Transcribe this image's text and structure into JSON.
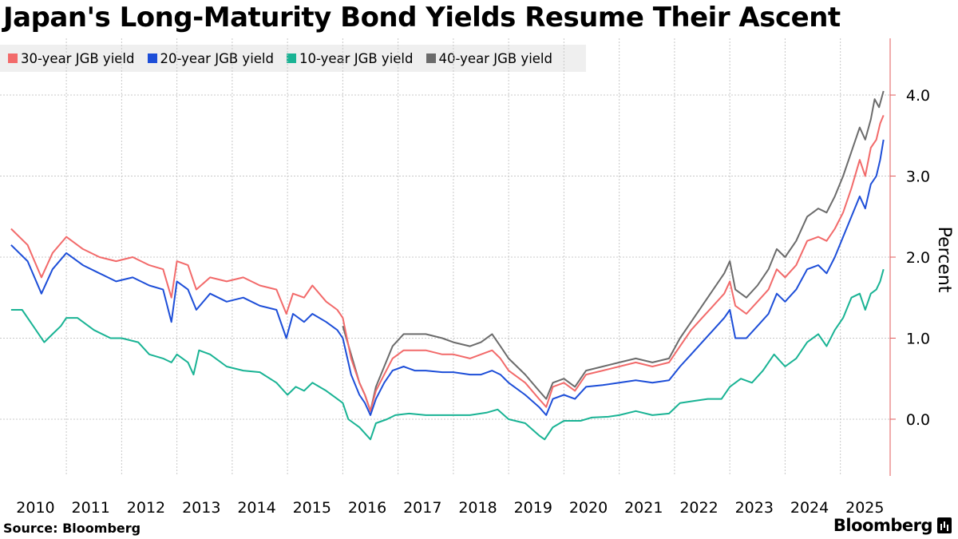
{
  "title": "Japan's Long-Maturity Bond Yields Resume Their Ascent",
  "source": "Source: Bloomberg",
  "brand": "Bloomberg",
  "brand_icon": "terminal-icon",
  "chart_data": {
    "type": "line",
    "ylabel": "Percent",
    "ylim": [
      -0.7,
      4.7
    ],
    "yticks": [
      0.0,
      1.0,
      2.0,
      3.0,
      4.0
    ],
    "ytick_labels": [
      "0.0",
      "1.0",
      "2.0",
      "3.0",
      "4.0"
    ],
    "xlim": [
      2010.0,
      2025.75
    ],
    "xticks": [
      2010,
      2011,
      2012,
      2013,
      2014,
      2015,
      2016,
      2017,
      2018,
      2019,
      2020,
      2021,
      2022,
      2023,
      2024,
      2025
    ],
    "xtick_labels": [
      "2010",
      "2011",
      "2012",
      "2013",
      "2014",
      "2015",
      "2016",
      "2017",
      "2018",
      "2019",
      "2020",
      "2021",
      "2022",
      "2023",
      "2024",
      "2025"
    ],
    "grid": true,
    "legend_position": "top-left",
    "series": [
      {
        "name": "30-year JGB yield",
        "color": "#f26a6a",
        "points": [
          [
            2010.0,
            2.35
          ],
          [
            2010.3,
            2.15
          ],
          [
            2010.55,
            1.75
          ],
          [
            2010.75,
            2.05
          ],
          [
            2011.0,
            2.25
          ],
          [
            2011.3,
            2.1
          ],
          [
            2011.6,
            2.0
          ],
          [
            2011.9,
            1.95
          ],
          [
            2012.2,
            2.0
          ],
          [
            2012.5,
            1.9
          ],
          [
            2012.75,
            1.85
          ],
          [
            2012.9,
            1.5
          ],
          [
            2013.0,
            1.95
          ],
          [
            2013.2,
            1.9
          ],
          [
            2013.35,
            1.6
          ],
          [
            2013.6,
            1.75
          ],
          [
            2013.9,
            1.7
          ],
          [
            2014.2,
            1.75
          ],
          [
            2014.5,
            1.65
          ],
          [
            2014.8,
            1.6
          ],
          [
            2014.98,
            1.3
          ],
          [
            2015.1,
            1.55
          ],
          [
            2015.3,
            1.5
          ],
          [
            2015.45,
            1.65
          ],
          [
            2015.7,
            1.45
          ],
          [
            2015.9,
            1.35
          ],
          [
            2016.0,
            1.25
          ],
          [
            2016.15,
            0.75
          ],
          [
            2016.3,
            0.45
          ],
          [
            2016.4,
            0.3
          ],
          [
            2016.5,
            0.1
          ],
          [
            2016.6,
            0.35
          ],
          [
            2016.75,
            0.55
          ],
          [
            2016.9,
            0.75
          ],
          [
            2017.1,
            0.85
          ],
          [
            2017.3,
            0.85
          ],
          [
            2017.5,
            0.85
          ],
          [
            2017.8,
            0.8
          ],
          [
            2018.0,
            0.8
          ],
          [
            2018.3,
            0.75
          ],
          [
            2018.5,
            0.8
          ],
          [
            2018.7,
            0.85
          ],
          [
            2018.85,
            0.75
          ],
          [
            2019.0,
            0.6
          ],
          [
            2019.3,
            0.45
          ],
          [
            2019.55,
            0.25
          ],
          [
            2019.68,
            0.15
          ],
          [
            2019.8,
            0.4
          ],
          [
            2020.0,
            0.45
          ],
          [
            2020.2,
            0.35
          ],
          [
            2020.4,
            0.55
          ],
          [
            2020.7,
            0.6
          ],
          [
            2021.0,
            0.65
          ],
          [
            2021.3,
            0.7
          ],
          [
            2021.6,
            0.65
          ],
          [
            2021.9,
            0.7
          ],
          [
            2022.1,
            0.9
          ],
          [
            2022.3,
            1.1
          ],
          [
            2022.5,
            1.25
          ],
          [
            2022.7,
            1.4
          ],
          [
            2022.9,
            1.55
          ],
          [
            2023.0,
            1.7
          ],
          [
            2023.1,
            1.4
          ],
          [
            2023.3,
            1.3
          ],
          [
            2023.5,
            1.45
          ],
          [
            2023.7,
            1.6
          ],
          [
            2023.85,
            1.85
          ],
          [
            2024.0,
            1.75
          ],
          [
            2024.2,
            1.9
          ],
          [
            2024.4,
            2.2
          ],
          [
            2024.6,
            2.25
          ],
          [
            2024.75,
            2.2
          ],
          [
            2024.9,
            2.35
          ],
          [
            2025.05,
            2.55
          ],
          [
            2025.2,
            2.85
          ],
          [
            2025.35,
            3.2
          ],
          [
            2025.45,
            3.0
          ],
          [
            2025.55,
            3.35
          ],
          [
            2025.65,
            3.45
          ],
          [
            2025.72,
            3.65
          ],
          [
            2025.78,
            3.75
          ]
        ]
      },
      {
        "name": "20-year JGB yield",
        "color": "#1d4ed8",
        "points": [
          [
            2010.0,
            2.15
          ],
          [
            2010.3,
            1.95
          ],
          [
            2010.55,
            1.55
          ],
          [
            2010.75,
            1.85
          ],
          [
            2011.0,
            2.05
          ],
          [
            2011.3,
            1.9
          ],
          [
            2011.6,
            1.8
          ],
          [
            2011.9,
            1.7
          ],
          [
            2012.2,
            1.75
          ],
          [
            2012.5,
            1.65
          ],
          [
            2012.75,
            1.6
          ],
          [
            2012.9,
            1.2
          ],
          [
            2013.0,
            1.7
          ],
          [
            2013.2,
            1.6
          ],
          [
            2013.35,
            1.35
          ],
          [
            2013.6,
            1.55
          ],
          [
            2013.9,
            1.45
          ],
          [
            2014.2,
            1.5
          ],
          [
            2014.5,
            1.4
          ],
          [
            2014.8,
            1.35
          ],
          [
            2014.98,
            1.0
          ],
          [
            2015.1,
            1.3
          ],
          [
            2015.3,
            1.2
          ],
          [
            2015.45,
            1.3
          ],
          [
            2015.7,
            1.2
          ],
          [
            2015.9,
            1.1
          ],
          [
            2016.0,
            1.0
          ],
          [
            2016.15,
            0.55
          ],
          [
            2016.3,
            0.3
          ],
          [
            2016.4,
            0.2
          ],
          [
            2016.5,
            0.05
          ],
          [
            2016.6,
            0.25
          ],
          [
            2016.75,
            0.45
          ],
          [
            2016.9,
            0.6
          ],
          [
            2017.1,
            0.65
          ],
          [
            2017.3,
            0.6
          ],
          [
            2017.5,
            0.6
          ],
          [
            2017.8,
            0.58
          ],
          [
            2018.0,
            0.58
          ],
          [
            2018.3,
            0.55
          ],
          [
            2018.5,
            0.55
          ],
          [
            2018.7,
            0.6
          ],
          [
            2018.85,
            0.55
          ],
          [
            2019.0,
            0.45
          ],
          [
            2019.3,
            0.3
          ],
          [
            2019.55,
            0.15
          ],
          [
            2019.68,
            0.05
          ],
          [
            2019.8,
            0.25
          ],
          [
            2020.0,
            0.3
          ],
          [
            2020.2,
            0.25
          ],
          [
            2020.4,
            0.4
          ],
          [
            2020.7,
            0.42
          ],
          [
            2021.0,
            0.45
          ],
          [
            2021.3,
            0.48
          ],
          [
            2021.6,
            0.45
          ],
          [
            2021.9,
            0.48
          ],
          [
            2022.1,
            0.65
          ],
          [
            2022.3,
            0.8
          ],
          [
            2022.5,
            0.95
          ],
          [
            2022.7,
            1.1
          ],
          [
            2022.9,
            1.25
          ],
          [
            2023.0,
            1.35
          ],
          [
            2023.1,
            1.0
          ],
          [
            2023.3,
            1.0
          ],
          [
            2023.5,
            1.15
          ],
          [
            2023.7,
            1.3
          ],
          [
            2023.85,
            1.55
          ],
          [
            2024.0,
            1.45
          ],
          [
            2024.2,
            1.6
          ],
          [
            2024.4,
            1.85
          ],
          [
            2024.6,
            1.9
          ],
          [
            2024.75,
            1.8
          ],
          [
            2024.9,
            2.0
          ],
          [
            2025.05,
            2.25
          ],
          [
            2025.2,
            2.5
          ],
          [
            2025.35,
            2.75
          ],
          [
            2025.45,
            2.6
          ],
          [
            2025.55,
            2.9
          ],
          [
            2025.65,
            3.0
          ],
          [
            2025.72,
            3.2
          ],
          [
            2025.78,
            3.45
          ]
        ]
      },
      {
        "name": "10-year JGB yield",
        "color": "#19b394",
        "points": [
          [
            2010.0,
            1.35
          ],
          [
            2010.2,
            1.35
          ],
          [
            2010.4,
            1.15
          ],
          [
            2010.6,
            0.95
          ],
          [
            2010.75,
            1.05
          ],
          [
            2010.9,
            1.15
          ],
          [
            2011.0,
            1.25
          ],
          [
            2011.2,
            1.25
          ],
          [
            2011.5,
            1.1
          ],
          [
            2011.8,
            1.0
          ],
          [
            2012.0,
            1.0
          ],
          [
            2012.3,
            0.95
          ],
          [
            2012.5,
            0.8
          ],
          [
            2012.75,
            0.75
          ],
          [
            2012.9,
            0.7
          ],
          [
            2013.0,
            0.8
          ],
          [
            2013.2,
            0.7
          ],
          [
            2013.3,
            0.55
          ],
          [
            2013.4,
            0.85
          ],
          [
            2013.6,
            0.8
          ],
          [
            2013.9,
            0.65
          ],
          [
            2014.2,
            0.6
          ],
          [
            2014.5,
            0.58
          ],
          [
            2014.8,
            0.45
          ],
          [
            2015.0,
            0.3
          ],
          [
            2015.15,
            0.4
          ],
          [
            2015.3,
            0.35
          ],
          [
            2015.45,
            0.45
          ],
          [
            2015.7,
            0.35
          ],
          [
            2015.9,
            0.25
          ],
          [
            2016.0,
            0.2
          ],
          [
            2016.1,
            0.0
          ],
          [
            2016.3,
            -0.1
          ],
          [
            2016.5,
            -0.25
          ],
          [
            2016.6,
            -0.05
          ],
          [
            2016.8,
            0.0
          ],
          [
            2016.95,
            0.05
          ],
          [
            2017.2,
            0.07
          ],
          [
            2017.5,
            0.05
          ],
          [
            2017.8,
            0.05
          ],
          [
            2018.0,
            0.05
          ],
          [
            2018.3,
            0.05
          ],
          [
            2018.6,
            0.08
          ],
          [
            2018.8,
            0.12
          ],
          [
            2019.0,
            0.0
          ],
          [
            2019.3,
            -0.05
          ],
          [
            2019.55,
            -0.2
          ],
          [
            2019.65,
            -0.25
          ],
          [
            2019.8,
            -0.1
          ],
          [
            2020.0,
            -0.02
          ],
          [
            2020.3,
            -0.02
          ],
          [
            2020.5,
            0.02
          ],
          [
            2020.8,
            0.03
          ],
          [
            2021.0,
            0.05
          ],
          [
            2021.3,
            0.1
          ],
          [
            2021.6,
            0.05
          ],
          [
            2021.9,
            0.07
          ],
          [
            2022.1,
            0.2
          ],
          [
            2022.3,
            0.22
          ],
          [
            2022.6,
            0.25
          ],
          [
            2022.85,
            0.25
          ],
          [
            2023.0,
            0.4
          ],
          [
            2023.2,
            0.5
          ],
          [
            2023.4,
            0.45
          ],
          [
            2023.6,
            0.6
          ],
          [
            2023.8,
            0.8
          ],
          [
            2024.0,
            0.65
          ],
          [
            2024.2,
            0.75
          ],
          [
            2024.4,
            0.95
          ],
          [
            2024.6,
            1.05
          ],
          [
            2024.75,
            0.9
          ],
          [
            2024.9,
            1.1
          ],
          [
            2025.05,
            1.25
          ],
          [
            2025.2,
            1.5
          ],
          [
            2025.35,
            1.55
          ],
          [
            2025.45,
            1.35
          ],
          [
            2025.55,
            1.55
          ],
          [
            2025.65,
            1.6
          ],
          [
            2025.72,
            1.7
          ],
          [
            2025.78,
            1.85
          ]
        ]
      },
      {
        "name": "40-year JGB yield",
        "color": "#6b6b6b",
        "points": [
          [
            2016.0,
            1.15
          ],
          [
            2016.15,
            0.8
          ],
          [
            2016.3,
            0.45
          ],
          [
            2016.4,
            0.3
          ],
          [
            2016.5,
            0.1
          ],
          [
            2016.6,
            0.4
          ],
          [
            2016.75,
            0.65
          ],
          [
            2016.9,
            0.9
          ],
          [
            2017.1,
            1.05
          ],
          [
            2017.3,
            1.05
          ],
          [
            2017.5,
            1.05
          ],
          [
            2017.8,
            1.0
          ],
          [
            2018.0,
            0.95
          ],
          [
            2018.3,
            0.9
          ],
          [
            2018.5,
            0.95
          ],
          [
            2018.7,
            1.05
          ],
          [
            2018.85,
            0.9
          ],
          [
            2019.0,
            0.75
          ],
          [
            2019.3,
            0.55
          ],
          [
            2019.55,
            0.35
          ],
          [
            2019.68,
            0.25
          ],
          [
            2019.8,
            0.45
          ],
          [
            2020.0,
            0.5
          ],
          [
            2020.2,
            0.4
          ],
          [
            2020.4,
            0.6
          ],
          [
            2020.7,
            0.65
          ],
          [
            2021.0,
            0.7
          ],
          [
            2021.3,
            0.75
          ],
          [
            2021.6,
            0.7
          ],
          [
            2021.9,
            0.75
          ],
          [
            2022.1,
            1.0
          ],
          [
            2022.3,
            1.2
          ],
          [
            2022.5,
            1.4
          ],
          [
            2022.7,
            1.6
          ],
          [
            2022.9,
            1.8
          ],
          [
            2023.0,
            1.95
          ],
          [
            2023.1,
            1.6
          ],
          [
            2023.3,
            1.5
          ],
          [
            2023.5,
            1.65
          ],
          [
            2023.7,
            1.85
          ],
          [
            2023.85,
            2.1
          ],
          [
            2024.0,
            2.0
          ],
          [
            2024.2,
            2.2
          ],
          [
            2024.4,
            2.5
          ],
          [
            2024.6,
            2.6
          ],
          [
            2024.75,
            2.55
          ],
          [
            2024.9,
            2.75
          ],
          [
            2025.05,
            3.0
          ],
          [
            2025.2,
            3.3
          ],
          [
            2025.35,
            3.6
          ],
          [
            2025.45,
            3.45
          ],
          [
            2025.55,
            3.7
          ],
          [
            2025.62,
            3.95
          ],
          [
            2025.7,
            3.85
          ],
          [
            2025.78,
            4.05
          ]
        ]
      }
    ]
  }
}
